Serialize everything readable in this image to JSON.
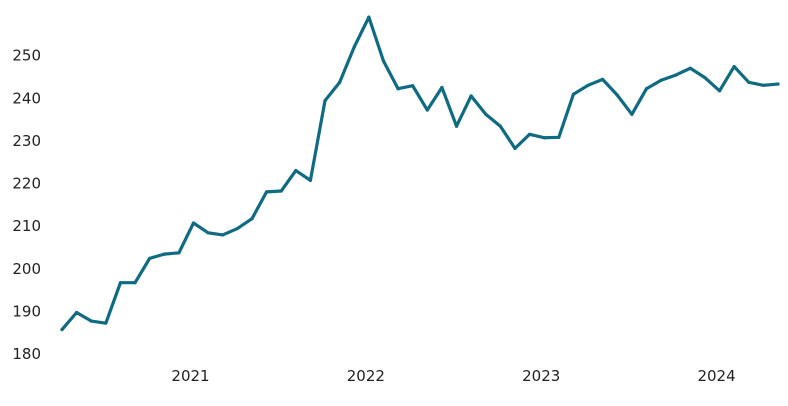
{
  "chart_data": {
    "type": "line",
    "title": "",
    "xlabel": "",
    "ylabel": "",
    "grid": false,
    "legend": "none",
    "ylim": [
      180,
      260
    ],
    "xlim": [
      "2020-04",
      "2024-05"
    ],
    "y_ticks": [
      "180",
      "190",
      "200",
      "210",
      "220",
      "230",
      "240",
      "250"
    ],
    "x_ticks": [
      "2021",
      "2022",
      "2023",
      "2024"
    ],
    "colors": {
      "line": "#0f6b82"
    },
    "x": [
      "2020-04",
      "2020-05",
      "2020-06",
      "2020-07",
      "2020-08",
      "2020-09",
      "2020-10",
      "2020-11",
      "2020-12",
      "2021-01",
      "2021-02",
      "2021-03",
      "2021-04",
      "2021-05",
      "2021-06",
      "2021-07",
      "2021-08",
      "2021-09",
      "2021-10",
      "2021-11",
      "2021-12",
      "2022-01",
      "2022-02",
      "2022-03",
      "2022-04",
      "2022-05",
      "2022-06",
      "2022-07",
      "2022-08",
      "2022-09",
      "2022-10",
      "2022-11",
      "2022-12",
      "2023-01",
      "2023-02",
      "2023-03",
      "2023-04",
      "2023-05",
      "2023-06",
      "2023-07",
      "2023-08",
      "2023-09",
      "2023-10",
      "2023-11",
      "2023-12",
      "2024-01",
      "2024-02",
      "2024-03",
      "2024-04",
      "2024-05"
    ],
    "values": [
      185.5,
      189.5,
      187.5,
      187.0,
      196.5,
      196.5,
      202.2,
      203.2,
      203.5,
      210.5,
      208.2,
      207.7,
      209.2,
      211.5,
      217.8,
      218.0,
      222.8,
      220.5,
      239.2,
      243.5,
      251.8,
      258.8,
      248.5,
      242.0,
      242.7,
      237.0,
      242.3,
      233.2,
      240.3,
      236.0,
      233.2,
      228.0,
      231.3,
      230.5,
      230.6,
      240.7,
      242.8,
      244.2,
      240.5,
      236.0,
      242.0,
      244.0,
      245.2,
      246.8,
      244.6,
      241.5,
      247.2,
      243.5,
      242.8,
      243.1
    ]
  }
}
